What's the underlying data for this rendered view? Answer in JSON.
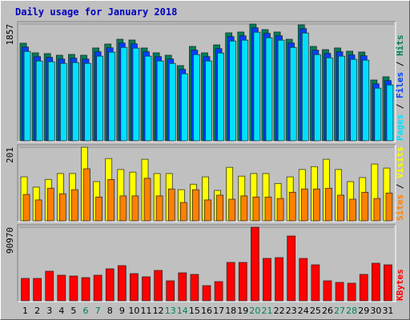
{
  "chart_data": [
    {
      "type": "bar",
      "title": "Daily usage for January 2018",
      "legend_separator": " / ",
      "ylim": [
        0,
        1857
      ],
      "yticks": [
        1857
      ],
      "series": [
        {
          "name": "Pages",
          "color": "#00e0ff",
          "values": [
            1422,
            1269,
            1257,
            1231,
            1244,
            1231,
            1346,
            1409,
            1485,
            1473,
            1346,
            1269,
            1231,
            1066,
            1371,
            1269,
            1396,
            1587,
            1600,
            1727,
            1638,
            1600,
            1485,
            1714,
            1371,
            1320,
            1346,
            1295,
            1282,
            837,
            888
          ]
        },
        {
          "name": "Files",
          "color": "#0040ff",
          "values": [
            1492,
            1339,
            1327,
            1301,
            1314,
            1301,
            1416,
            1479,
            1555,
            1543,
            1416,
            1339,
            1301,
            1136,
            1441,
            1339,
            1466,
            1657,
            1670,
            1797,
            1708,
            1670,
            1555,
            1784,
            1441,
            1390,
            1416,
            1365,
            1352,
            907,
            958
          ]
        },
        {
          "name": "Hits",
          "color": "#00805c",
          "values": [
            1552,
            1399,
            1387,
            1361,
            1374,
            1361,
            1476,
            1539,
            1615,
            1603,
            1476,
            1399,
            1361,
            1196,
            1501,
            1399,
            1526,
            1717,
            1730,
            1857,
            1768,
            1730,
            1615,
            1844,
            1501,
            1450,
            1476,
            1425,
            1412,
            967,
            1018
          ]
        }
      ]
    },
    {
      "type": "bar",
      "legend_separator": " / ",
      "ylim": [
        0,
        201
      ],
      "yticks": [
        201
      ],
      "series": [
        {
          "name": "Sites",
          "color": "#ff8000",
          "values": [
            72,
            57,
            89,
            74,
            85,
            142,
            65,
            113,
            68,
            68,
            116,
            68,
            87,
            50,
            85,
            57,
            70,
            59,
            68,
            65,
            65,
            61,
            78,
            87,
            87,
            89,
            70,
            59,
            78,
            61,
            76
          ]
        },
        {
          "name": "Visits",
          "color": "#ffff00",
          "values": [
            120,
            92,
            113,
            129,
            129,
            201,
            107,
            170,
            140,
            133,
            168,
            129,
            129,
            85,
            100,
            120,
            83,
            146,
            122,
            129,
            129,
            102,
            120,
            140,
            148,
            168,
            140,
            107,
            118,
            155,
            144
          ]
        }
      ]
    },
    {
      "type": "bar",
      "ylim": [
        0,
        90970
      ],
      "yticks": [
        90970
      ],
      "categories": [
        "1",
        "2",
        "3",
        "4",
        "5",
        "6",
        "7",
        "8",
        "9",
        "10",
        "11",
        "12",
        "13",
        "14",
        "15",
        "16",
        "17",
        "18",
        "19",
        "20",
        "21",
        "22",
        "23",
        "24",
        "25",
        "26",
        "27",
        "28",
        "29",
        "30",
        "31"
      ],
      "weekend_indices": [
        5,
        6,
        12,
        13,
        19,
        20,
        26,
        27
      ],
      "weekend_color": "#00805c",
      "series": [
        {
          "name": "KBytes",
          "color": "#ff0000",
          "values": [
            27692,
            27692,
            36593,
            31648,
            30659,
            28681,
            31648,
            39560,
            43516,
            33626,
            29670,
            37582,
            24725,
            34615,
            32637,
            18791,
            23736,
            47472,
            47472,
            90970,
            52417,
            53406,
            80109,
            52417,
            44505,
            24725,
            22747,
            21758,
            32637,
            46483,
            44505
          ]
        }
      ]
    }
  ]
}
